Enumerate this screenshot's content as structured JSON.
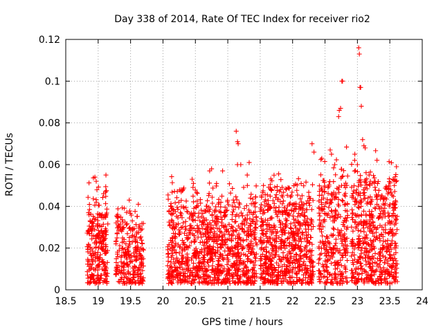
{
  "chart_data": {
    "type": "scatter",
    "title": "Day 338 of 2014, Rate Of TEC Index for receiver rio2",
    "xlabel": "GPS time / hours",
    "ylabel": "ROTI / TECUs",
    "xlim": [
      18.5,
      24
    ],
    "ylim": [
      0,
      0.12
    ],
    "xticks": [
      18.5,
      19,
      19.5,
      20,
      20.5,
      21,
      21.5,
      22,
      22.5,
      23,
      23.5,
      24
    ],
    "xtick_labels": [
      "18.5",
      "19",
      "19.5",
      "20",
      "20.5",
      "21",
      "21.5",
      "22",
      "22.5",
      "23",
      "23.5",
      "24"
    ],
    "yticks": [
      0,
      0.02,
      0.04,
      0.06,
      0.08,
      0.1,
      0.12
    ],
    "ytick_labels": [
      "0",
      "0.02",
      "0.04",
      "0.06",
      "0.08",
      "0.1",
      "0.12"
    ],
    "grid": true,
    "marker": "+",
    "series_color": "#ff0000",
    "clusters": [
      {
        "x_range": [
          18.83,
          19.15
        ],
        "y_base": 0.018,
        "y_spread": 0.022,
        "count": 260
      },
      {
        "x_range": [
          19.27,
          19.7
        ],
        "y_base": 0.016,
        "y_spread": 0.018,
        "count": 260
      },
      {
        "x_range": [
          20.07,
          21.45
        ],
        "y_base": 0.018,
        "y_spread": 0.022,
        "count": 1000
      },
      {
        "x_range": [
          21.5,
          22.32
        ],
        "y_base": 0.02,
        "y_spread": 0.024,
        "count": 700
      },
      {
        "x_range": [
          22.4,
          22.85
        ],
        "y_base": 0.024,
        "y_spread": 0.028,
        "count": 320
      },
      {
        "x_range": [
          22.9,
          23.62
        ],
        "y_base": 0.022,
        "y_spread": 0.028,
        "count": 560
      }
    ],
    "high_points": [
      {
        "x": 18.95,
        "y": 0.054
      },
      {
        "x": 18.97,
        "y": 0.052
      },
      {
        "x": 19.12,
        "y": 0.055
      },
      {
        "x": 19.48,
        "y": 0.043
      },
      {
        "x": 19.62,
        "y": 0.041
      },
      {
        "x": 20.45,
        "y": 0.053
      },
      {
        "x": 20.47,
        "y": 0.051
      },
      {
        "x": 20.72,
        "y": 0.057
      },
      {
        "x": 20.75,
        "y": 0.058
      },
      {
        "x": 20.92,
        "y": 0.057
      },
      {
        "x": 21.13,
        "y": 0.076
      },
      {
        "x": 21.15,
        "y": 0.071
      },
      {
        "x": 21.16,
        "y": 0.07
      },
      {
        "x": 21.15,
        "y": 0.06
      },
      {
        "x": 21.2,
        "y": 0.06
      },
      {
        "x": 21.33,
        "y": 0.061
      },
      {
        "x": 21.3,
        "y": 0.055
      },
      {
        "x": 21.55,
        "y": 0.05
      },
      {
        "x": 21.8,
        "y": 0.047
      },
      {
        "x": 22.3,
        "y": 0.07
      },
      {
        "x": 22.33,
        "y": 0.066
      },
      {
        "x": 22.45,
        "y": 0.063
      },
      {
        "x": 22.58,
        "y": 0.067
      },
      {
        "x": 22.6,
        "y": 0.065
      },
      {
        "x": 22.65,
        "y": 0.06
      },
      {
        "x": 22.72,
        "y": 0.086
      },
      {
        "x": 22.74,
        "y": 0.087
      },
      {
        "x": 22.71,
        "y": 0.083
      },
      {
        "x": 22.76,
        "y": 0.1
      },
      {
        "x": 22.77,
        "y": 0.1
      },
      {
        "x": 22.96,
        "y": 0.065
      },
      {
        "x": 23.0,
        "y": 0.06
      },
      {
        "x": 23.02,
        "y": 0.116
      },
      {
        "x": 23.03,
        "y": 0.113
      },
      {
        "x": 23.04,
        "y": 0.097
      },
      {
        "x": 23.05,
        "y": 0.097
      },
      {
        "x": 23.06,
        "y": 0.088
      },
      {
        "x": 23.08,
        "y": 0.072
      },
      {
        "x": 23.1,
        "y": 0.069
      },
      {
        "x": 23.12,
        "y": 0.068
      },
      {
        "x": 23.18,
        "y": 0.055
      },
      {
        "x": 23.2,
        "y": 0.052
      },
      {
        "x": 23.57,
        "y": 0.05
      },
      {
        "x": 23.38,
        "y": 0.045
      },
      {
        "x": 23.47,
        "y": 0.046
      }
    ]
  }
}
